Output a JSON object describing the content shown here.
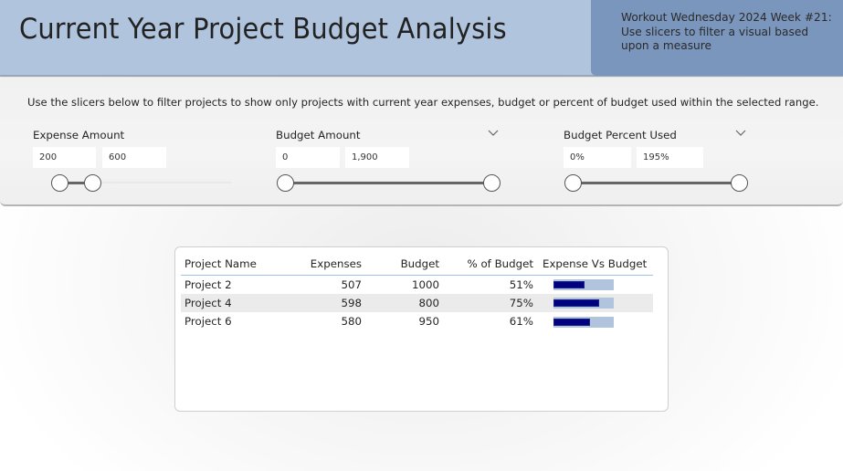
{
  "header": {
    "title": "Current Year Project Budget Analysis",
    "note": "Workout Wednesday 2024 Week #21:\nUse slicers to filter a visual based\nupon a measure",
    "background_color": "#b0c4de",
    "note_color": "#7b96bd"
  },
  "slicer_panel": {
    "instruction": "Use the slicers below to filter projects to show only projects with current year expenses, budget or percent of budget used within the selected range.",
    "slicers": [
      {
        "label": "Expense Amount",
        "min_value": "200",
        "max_value": "600",
        "has_dropdown": false,
        "icon": "none"
      },
      {
        "label": "Budget Amount",
        "min_value": "0",
        "max_value": "1,900",
        "has_dropdown": true,
        "icon": "chevron-down-icon"
      },
      {
        "label": "Budget Percent Used",
        "min_value": "0%",
        "max_value": "195%",
        "has_dropdown": true,
        "icon": "chevron-down-icon"
      }
    ]
  },
  "table": {
    "columns": [
      "Project Name",
      "Expenses",
      "Budget",
      "% of Budget",
      "Expense Vs Budget"
    ],
    "rows": [
      {
        "project": "Project 2",
        "expenses": "507",
        "budget": "1000",
        "pct": "51%",
        "pct_value": 51
      },
      {
        "project": "Project 4",
        "expenses": "598",
        "budget": "800",
        "pct": "75%",
        "pct_value": 75
      },
      {
        "project": "Project 6",
        "expenses": "580",
        "budget": "950",
        "pct": "61%",
        "pct_value": 61
      }
    ],
    "bar_fill_color": "#000080",
    "bar_track_color": "#b0c4de"
  }
}
